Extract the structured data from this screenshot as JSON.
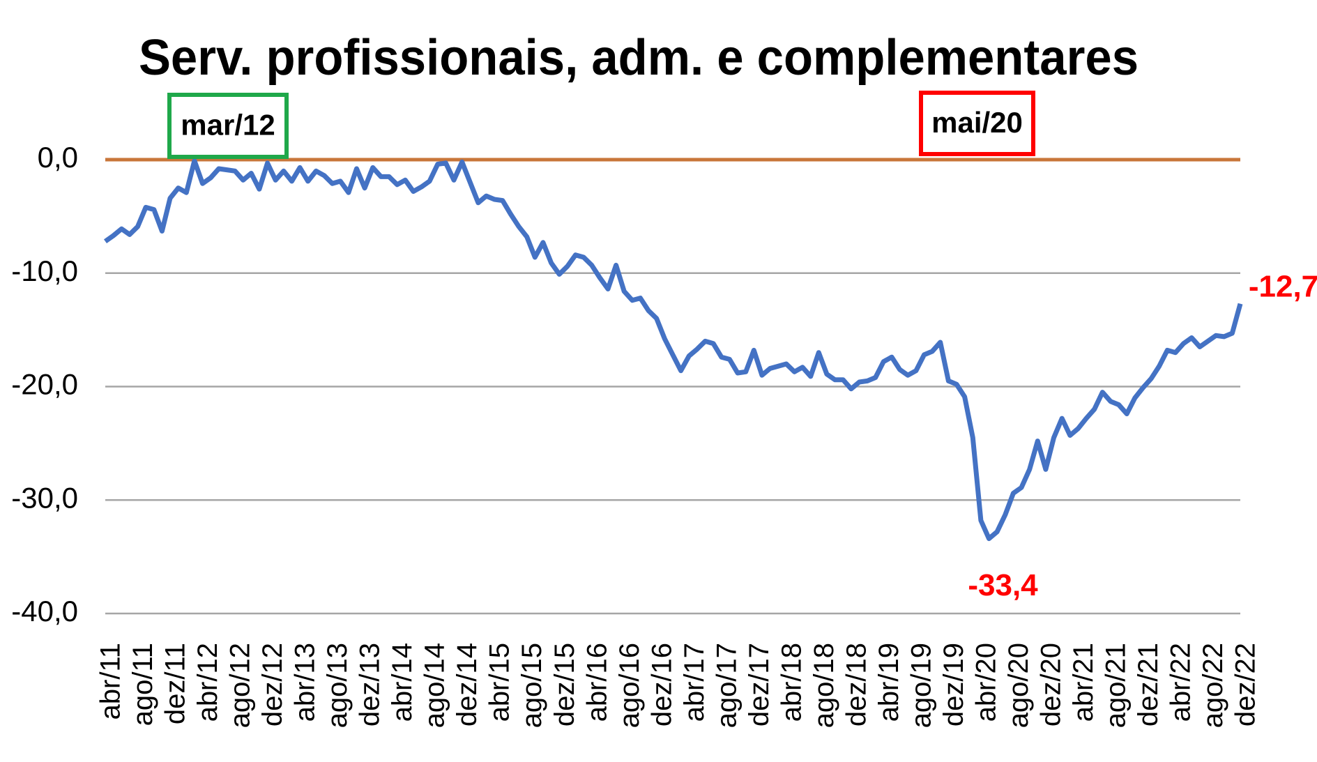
{
  "chart_data": {
    "type": "line",
    "title": "Serv. profissionais, adm. e complementares",
    "categories": [
      "abr/11",
      null,
      null,
      null,
      "ago/11",
      null,
      null,
      null,
      "dez/11",
      null,
      null,
      null,
      "abr/12",
      null,
      null,
      null,
      "ago/12",
      null,
      null,
      null,
      "dez/12",
      null,
      null,
      null,
      "abr/13",
      null,
      null,
      null,
      "ago/13",
      null,
      null,
      null,
      "dez/13",
      null,
      null,
      null,
      "abr/14",
      null,
      null,
      null,
      "ago/14",
      null,
      null,
      null,
      "dez/14",
      null,
      null,
      null,
      "abr/15",
      null,
      null,
      null,
      "ago/15",
      null,
      null,
      null,
      "dez/15",
      null,
      null,
      null,
      "abr/16",
      null,
      null,
      null,
      "ago/16",
      null,
      null,
      null,
      "dez/16",
      null,
      null,
      null,
      "abr/17",
      null,
      null,
      null,
      "ago/17",
      null,
      null,
      null,
      "dez/17",
      null,
      null,
      null,
      "abr/18",
      null,
      null,
      null,
      "ago/18",
      null,
      null,
      null,
      "dez/18",
      null,
      null,
      null,
      "abr/19",
      null,
      null,
      null,
      "ago/19",
      null,
      null,
      null,
      "dez/19",
      null,
      null,
      null,
      "abr/20",
      null,
      null,
      null,
      "ago/20",
      null,
      null,
      null,
      "dez/20",
      null,
      null,
      null,
      "abr/21",
      null,
      null,
      null,
      "ago/21",
      null,
      null,
      null,
      "dez/21",
      null,
      null,
      null,
      "abr/22",
      null,
      null,
      null,
      "ago/22",
      null,
      null,
      null,
      "dez/22"
    ],
    "series": [
      {
        "name": "Serv. profissionais, adm. e complementares",
        "color": "#4472c4",
        "values": [
          -7.2,
          -6.7,
          -6.1,
          -6.6,
          -5.9,
          -4.2,
          -4.4,
          -6.3,
          -3.4,
          -2.5,
          -2.9,
          -0.1,
          -2.1,
          -1.6,
          -0.8,
          -0.9,
          -1.0,
          -1.8,
          -1.2,
          -2.6,
          -0.3,
          -1.8,
          -1.0,
          -1.9,
          -0.7,
          -1.9,
          -1.0,
          -1.4,
          -2.1,
          -1.9,
          -2.9,
          -0.8,
          -2.5,
          -0.7,
          -1.5,
          -1.5,
          -2.2,
          -1.8,
          -2.8,
          -2.4,
          -1.9,
          -0.4,
          -0.3,
          -1.8,
          -0.2,
          -2.0,
          -3.8,
          -3.2,
          -3.5,
          -3.6,
          -4.8,
          -5.9,
          -6.8,
          -8.6,
          -7.3,
          -9.1,
          -10.1,
          -9.4,
          -8.4,
          -8.6,
          -9.3,
          -10.4,
          -11.4,
          -9.3,
          -11.6,
          -12.4,
          -12.2,
          -13.3,
          -14.0,
          -15.8,
          -17.2,
          -18.6,
          -17.3,
          -16.7,
          -16.0,
          -16.2,
          -17.4,
          -17.6,
          -18.8,
          -18.7,
          -16.8,
          -19.0,
          -18.4,
          -18.2,
          -18.0,
          -18.7,
          -18.3,
          -19.1,
          -17.0,
          -18.9,
          -19.4,
          -19.4,
          -20.2,
          -19.6,
          -19.5,
          -19.2,
          -17.8,
          -17.4,
          -18.5,
          -19.0,
          -18.6,
          -17.2,
          -16.9,
          -16.1,
          -19.5,
          -19.8,
          -20.9,
          -24.5,
          -31.8,
          -33.4,
          -32.8,
          -31.3,
          -29.4,
          -28.9,
          -27.3,
          -24.8,
          -27.3,
          -24.5,
          -22.8,
          -24.3,
          -23.7,
          -22.8,
          -22.0,
          -20.5,
          -21.3,
          -21.6,
          -22.4,
          -21.0,
          -20.1,
          -19.3,
          -18.2,
          -16.8,
          -17.0,
          -16.2,
          -15.7,
          -16.5,
          -16.0,
          -15.5,
          -15.6,
          -15.3,
          -12.7
        ],
        "value_labels": [
          null,
          null,
          null,
          null,
          null,
          null,
          null,
          null,
          null,
          null,
          null,
          null,
          null,
          null,
          null,
          null,
          null,
          null,
          null,
          null,
          null,
          null,
          null,
          null,
          null,
          null,
          null,
          null,
          null,
          null,
          null,
          null,
          null,
          null,
          null,
          null,
          null,
          null,
          null,
          null,
          null,
          null,
          null,
          null,
          null,
          null,
          null,
          null,
          null,
          null,
          null,
          null,
          null,
          null,
          null,
          null,
          null,
          null,
          null,
          null,
          null,
          null,
          null,
          null,
          null,
          null,
          null,
          null,
          null,
          null,
          null,
          null,
          null,
          null,
          null,
          null,
          null,
          null,
          null,
          null,
          null,
          null,
          null,
          null,
          null,
          null,
          null,
          null,
          null,
          null,
          null,
          null,
          null,
          null,
          null,
          null,
          null,
          null,
          null,
          null,
          null,
          null,
          null,
          null,
          null,
          null,
          null,
          null,
          null,
          "-33,4",
          null,
          null,
          null,
          null,
          null,
          null,
          null,
          null,
          null,
          null,
          null,
          null,
          null,
          null,
          null,
          null,
          null,
          null,
          null,
          null,
          null,
          null,
          null,
          null,
          null,
          null,
          null,
          null,
          null,
          null,
          "-12,7"
        ],
        "value_label_color": "#ff0000"
      }
    ],
    "highlights": [
      {
        "label": "mar/12",
        "color": "#1fa84a"
      },
      {
        "label": "mai/20",
        "color": "#ff0000"
      }
    ],
    "ylim": [
      -40,
      0
    ],
    "yticks": [
      {
        "value": 0,
        "label": "0,0"
      },
      {
        "value": -10,
        "label": "-10,0"
      },
      {
        "value": -20,
        "label": "-20,0"
      },
      {
        "value": -30,
        "label": "-30,0"
      },
      {
        "value": -40,
        "label": "-40,0"
      }
    ],
    "grid": true,
    "grid_color": "#a6a6a6",
    "reference_line": {
      "value": 0,
      "color": "#c8763a"
    }
  }
}
